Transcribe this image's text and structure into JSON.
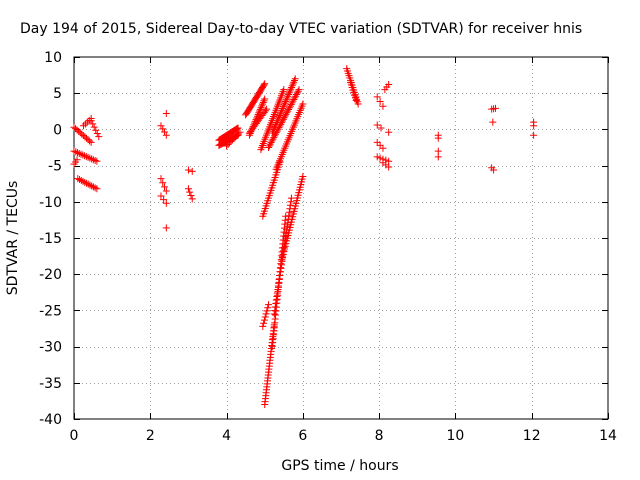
{
  "chart_data": {
    "type": "scatter",
    "title": "Day 194 of 2015, Sidereal Day-to-day VTEC variation (SDTVAR) for receiver hnis",
    "xlabel": "GPS time / hours",
    "ylabel": "SDTVAR / TECUs",
    "xlim": [
      0,
      14
    ],
    "ylim": [
      -40,
      10
    ],
    "xticks": [
      0,
      2,
      4,
      6,
      8,
      10,
      12,
      14
    ],
    "yticks": [
      10,
      5,
      0,
      -5,
      -10,
      -15,
      -20,
      -25,
      -30,
      -35,
      -40
    ],
    "grid": true,
    "marker": "plus",
    "color": "#ff0000",
    "segments": [
      {
        "x": [
          0.0,
          0.45
        ],
        "y": [
          0.3,
          -1.8
        ],
        "n": 12
      },
      {
        "x": [
          0.0,
          0.6
        ],
        "y": [
          -3.0,
          -4.4
        ],
        "n": 14
      },
      {
        "x": [
          0.0,
          0.08
        ],
        "y": [
          -4.8,
          -4.2
        ],
        "n": 3
      },
      {
        "x": [
          0.1,
          0.6
        ],
        "y": [
          -6.8,
          -8.2
        ],
        "n": 12
      },
      {
        "x": [
          0.25,
          0.45
        ],
        "y": [
          0.5,
          1.5
        ],
        "n": 5
      },
      {
        "x": [
          0.45,
          0.65
        ],
        "y": [
          1.2,
          -1.0
        ],
        "n": 6
      },
      {
        "x": [
          2.28,
          2.42
        ],
        "y": [
          0.5,
          -0.8
        ],
        "n": 4
      },
      {
        "x": [
          2.42,
          2.42
        ],
        "y": [
          2.2,
          2.2
        ],
        "n": 1
      },
      {
        "x": [
          2.28,
          2.42
        ],
        "y": [
          -6.8,
          -8.5
        ],
        "n": 4
      },
      {
        "x": [
          2.28,
          2.42
        ],
        "y": [
          -9.2,
          -10.2
        ],
        "n": 3
      },
      {
        "x": [
          2.42,
          2.42
        ],
        "y": [
          -13.6,
          -13.6
        ],
        "n": 1
      },
      {
        "x": [
          3.0,
          3.1
        ],
        "y": [
          -5.6,
          -5.8
        ],
        "n": 2
      },
      {
        "x": [
          3.0,
          3.1
        ],
        "y": [
          -8.2,
          -9.6
        ],
        "n": 4
      },
      {
        "x": [
          3.8,
          4.3
        ],
        "y": [
          -1.5,
          0.2
        ],
        "n": 22
      },
      {
        "x": [
          3.8,
          4.3
        ],
        "y": [
          -2.2,
          -0.8
        ],
        "n": 22
      },
      {
        "x": [
          4.0,
          4.35
        ],
        "y": [
          -2.3,
          -0.4
        ],
        "n": 10
      },
      {
        "x": [
          4.5,
          5.0
        ],
        "y": [
          2.0,
          6.3
        ],
        "n": 26
      },
      {
        "x": [
          4.6,
          5.0
        ],
        "y": [
          -0.8,
          4.2
        ],
        "n": 22
      },
      {
        "x": [
          4.6,
          5.05
        ],
        "y": [
          -0.5,
          2.8
        ],
        "n": 16
      },
      {
        "x": [
          4.9,
          5.5
        ],
        "y": [
          -2.8,
          5.5
        ],
        "n": 30
      },
      {
        "x": [
          5.2,
          5.8
        ],
        "y": [
          -0.5,
          7.0
        ],
        "n": 32
      },
      {
        "x": [
          5.1,
          5.9
        ],
        "y": [
          -2.5,
          5.5
        ],
        "n": 36
      },
      {
        "x": [
          5.3,
          6.0
        ],
        "y": [
          -5.5,
          3.5
        ],
        "n": 32
      },
      {
        "x": [
          4.95,
          5.4
        ],
        "y": [
          -12.0,
          -4.5
        ],
        "n": 22
      },
      {
        "x": [
          4.95,
          5.1
        ],
        "y": [
          -27.2,
          -24.2
        ],
        "n": 8
      },
      {
        "x": [
          5.0,
          5.25
        ],
        "y": [
          -38.0,
          -27.0
        ],
        "n": 28
      },
      {
        "x": [
          5.2,
          5.55
        ],
        "y": [
          -30.0,
          -12.0
        ],
        "n": 34
      },
      {
        "x": [
          5.25,
          5.7
        ],
        "y": [
          -25.5,
          -9.5
        ],
        "n": 34
      },
      {
        "x": [
          5.45,
          6.0
        ],
        "y": [
          -18.0,
          -6.5
        ],
        "n": 32
      },
      {
        "x": [
          7.15,
          7.45
        ],
        "y": [
          8.4,
          3.5
        ],
        "n": 16
      },
      {
        "x": [
          7.25,
          7.4
        ],
        "y": [
          6.5,
          4.0
        ],
        "n": 8
      },
      {
        "x": [
          7.95,
          8.1
        ],
        "y": [
          4.5,
          3.2
        ],
        "n": 3
      },
      {
        "x": [
          8.15,
          8.25
        ],
        "y": [
          5.5,
          6.2
        ],
        "n": 3
      },
      {
        "x": [
          7.95,
          8.05
        ],
        "y": [
          0.6,
          0.2
        ],
        "n": 2
      },
      {
        "x": [
          8.25,
          8.25
        ],
        "y": [
          -0.4,
          -0.4
        ],
        "n": 1
      },
      {
        "x": [
          7.95,
          8.1
        ],
        "y": [
          -1.8,
          -2.6
        ],
        "n": 3
      },
      {
        "x": [
          7.95,
          8.25
        ],
        "y": [
          -3.8,
          -4.4
        ],
        "n": 5
      },
      {
        "x": [
          8.1,
          8.25
        ],
        "y": [
          -4.6,
          -5.2
        ],
        "n": 3
      },
      {
        "x": [
          9.55,
          9.55
        ],
        "y": [
          -0.8,
          -1.2
        ],
        "n": 2
      },
      {
        "x": [
          9.55,
          9.55
        ],
        "y": [
          -3.0,
          -3.8
        ],
        "n": 2
      },
      {
        "x": [
          10.95,
          11.05
        ],
        "y": [
          2.8,
          2.9
        ],
        "n": 3
      },
      {
        "x": [
          10.98,
          10.98
        ],
        "y": [
          1.0,
          1.0
        ],
        "n": 1
      },
      {
        "x": [
          10.95,
          11.0
        ],
        "y": [
          -5.3,
          -5.6
        ],
        "n": 2
      },
      {
        "x": [
          12.05,
          12.05
        ],
        "y": [
          1.0,
          0.5
        ],
        "n": 2
      },
      {
        "x": [
          12.05,
          12.05
        ],
        "y": [
          -0.8,
          -0.8
        ],
        "n": 1
      }
    ]
  }
}
